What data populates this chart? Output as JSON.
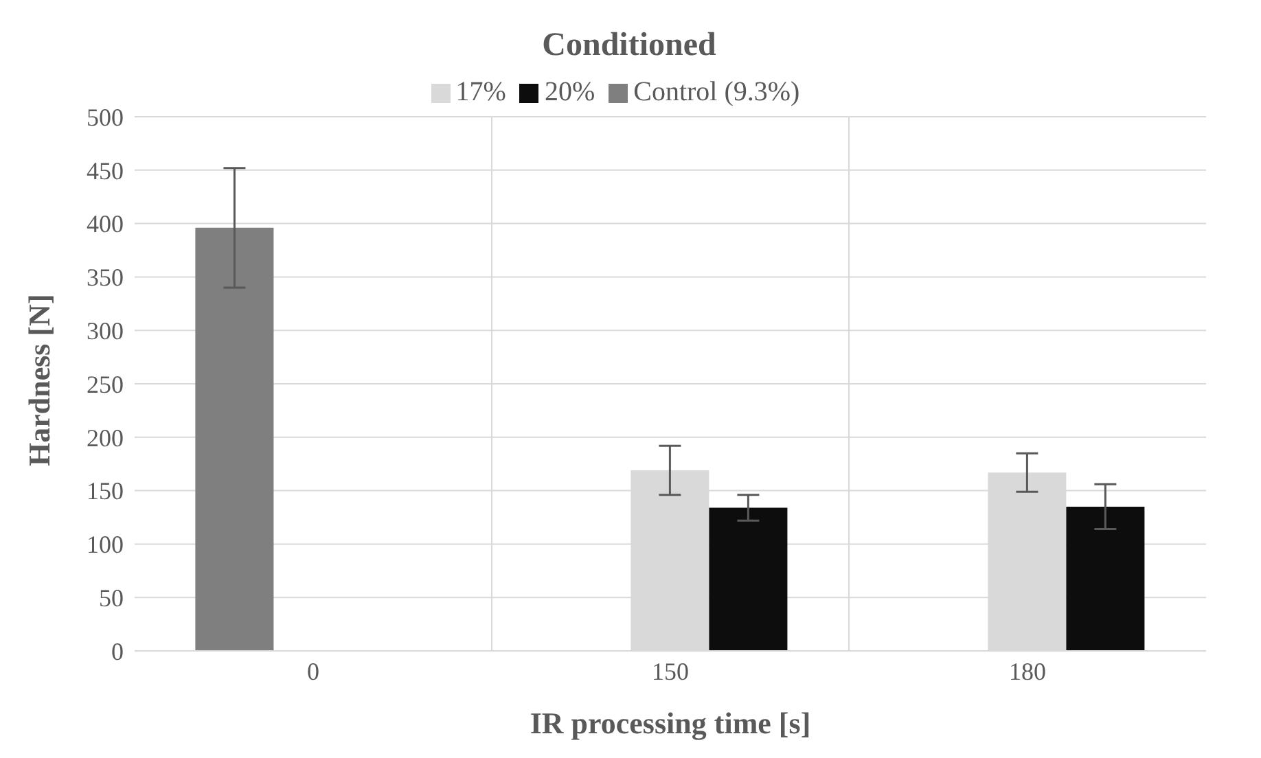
{
  "chart_data": {
    "type": "bar",
    "title": "Conditioned",
    "xlabel": "IR processing time [s]",
    "ylabel": "Hardness  [N]",
    "categories": [
      "0",
      "150",
      "180"
    ],
    "series": [
      {
        "name": "Control (9.3%)",
        "color": "#7f7f7f",
        "values": [
          396,
          null,
          null
        ],
        "errors": [
          56,
          null,
          null
        ]
      },
      {
        "name": "17%",
        "color": "#d9d9d9",
        "values": [
          0,
          169,
          167
        ],
        "errors": [
          0,
          23,
          18
        ]
      },
      {
        "name": "20%",
        "color": "#0d0d0d",
        "values": [
          0,
          134,
          135
        ],
        "errors": [
          0,
          12,
          21
        ]
      }
    ],
    "ylim": [
      0,
      500
    ],
    "yticks": [
      0,
      50,
      100,
      150,
      200,
      250,
      300,
      350,
      400,
      450,
      500
    ],
    "grid": true,
    "legend": "top"
  }
}
